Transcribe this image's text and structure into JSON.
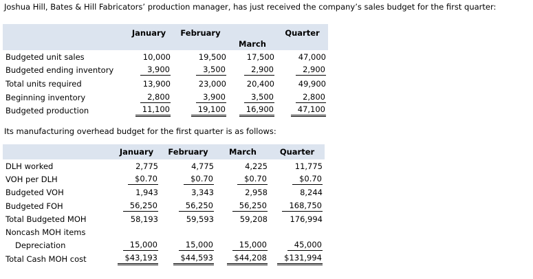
{
  "intro_text": "Joshua Hill, Bates & Hill Fabricators’ production manager, has just received the company’s sales budget for the first quarter:",
  "sales_table": {
    "headers": [
      "January",
      "February",
      "March",
      "Quarter"
    ],
    "rows": [
      {
        "label": "Budgeted unit sales",
        "values": [
          "10,000",
          "19,500",
          "17,500",
          "47,000"
        ]
      },
      {
        "label": "Budgeted ending inventory",
        "values": [
          "3,900",
          "3,500",
          "2,900",
          "2,900"
        ]
      },
      {
        "label": "Total units required",
        "values": [
          "13,900",
          "23,000",
          "20,400",
          "49,900"
        ]
      },
      {
        "label": "Beginning inventory",
        "values": [
          "2,800",
          "3,900",
          "3,500",
          "2,800"
        ]
      },
      {
        "label": "Budgeted production",
        "values": [
          "11,100",
          "19,100",
          "16,900",
          "47,100"
        ]
      }
    ]
  },
  "overhead_intro": "Its manufacturing overhead budget for the first quarter is as follows:",
  "overhead_table": {
    "headers": [
      "January",
      "February",
      "March",
      "Quarter"
    ],
    "rows": [
      {
        "label": "DLH worked",
        "values": [
          "2,775",
          "4,775",
          "4,225",
          "11,775"
        ]
      },
      {
        "label": "VOH per DLH",
        "values": [
          "$0.70",
          "$0.70",
          "$0.70",
          "$0.70"
        ]
      },
      {
        "label": "Budgeted VOH",
        "values": [
          "1,943",
          "3,343",
          "2,958",
          "8,244"
        ]
      },
      {
        "label": "Budgeted FOH",
        "values": [
          "56,250",
          "56,250",
          "56,250",
          "168,750"
        ]
      },
      {
        "label": "Total Budgeted MOH",
        "values": [
          "58,193",
          "59,593",
          "59,208",
          "176,994"
        ]
      },
      {
        "label": "Noncash MOH items",
        "values": []
      },
      {
        "label": "Depreciation",
        "values": [
          "15,000",
          "15,000",
          "15,000",
          "45,000"
        ]
      },
      {
        "label": "Total Cash MOH cost",
        "values": [
          "$43,193",
          "$44,593",
          "$44,208",
          "$131,994"
        ]
      }
    ]
  }
}
